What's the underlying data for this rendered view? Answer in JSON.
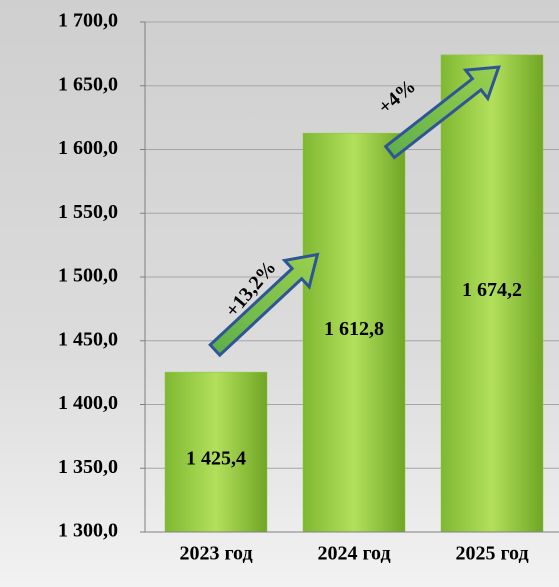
{
  "chart_data": {
    "type": "bar",
    "categories": [
      "2023 год",
      "2024 год",
      "2025 год"
    ],
    "values": [
      1425.4,
      1612.8,
      1674.2
    ],
    "value_labels": [
      "1 425,4",
      "1 612,8",
      "1 674,2"
    ],
    "color": "#8cc63f",
    "ylim": [
      1300,
      1700
    ],
    "yticks": [
      {
        "value": 1300,
        "label": "1 300,0"
      },
      {
        "value": 1350,
        "label": "1 350,0"
      },
      {
        "value": 1400,
        "label": "1 400,0"
      },
      {
        "value": 1450,
        "label": "1 450,0"
      },
      {
        "value": 1500,
        "label": "1 500,0"
      },
      {
        "value": 1550,
        "label": "1 550,0"
      },
      {
        "value": 1600,
        "label": "1 600,0"
      },
      {
        "value": 1650,
        "label": "1 650,0"
      },
      {
        "value": 1700,
        "label": "1 700,0"
      }
    ],
    "grid": true,
    "annotations": [
      "+13,2%",
      "+4%"
    ]
  }
}
